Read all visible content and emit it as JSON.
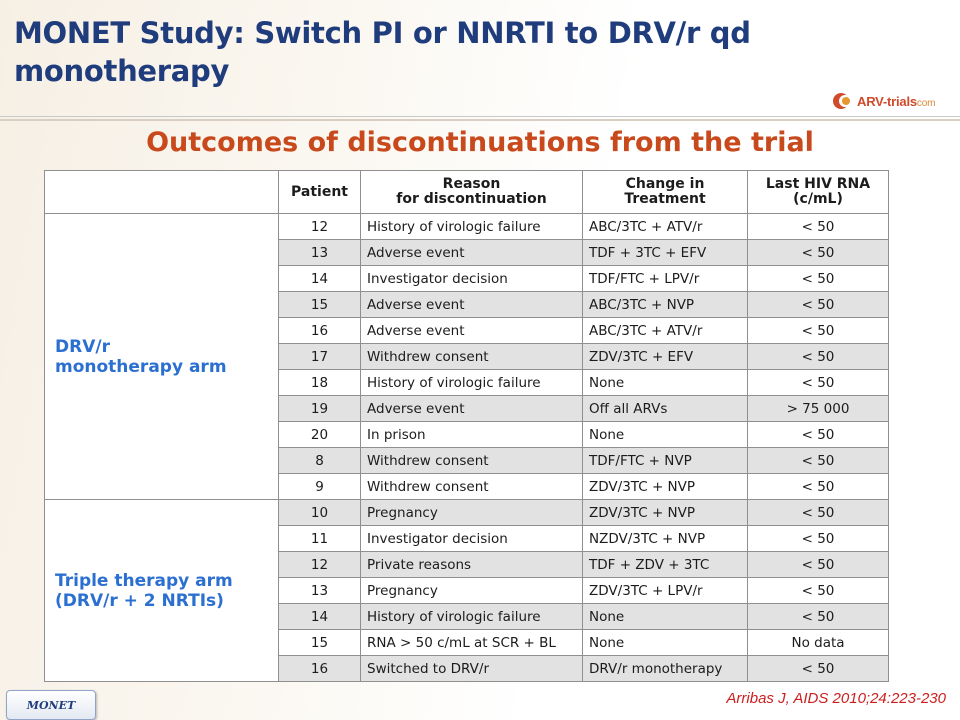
{
  "slide": {
    "title": "MONET Study: Switch PI or NNRTI to DRV/r qd monotherapy",
    "subtitle": "Outcomes of discontinuations from the trial",
    "logo": {
      "text": "ARV-trials",
      "suffix": "com"
    },
    "footer_tab": "MONET",
    "citation": "Arribas J, AIDS 2010;24:223-230"
  },
  "table": {
    "headers": {
      "arm": "",
      "patient": "Patient",
      "reason_line1": "Reason",
      "reason_line2": "for discontinuation",
      "change_line1": "Change in",
      "change_line2": "Treatment",
      "rna_line1": "Last HIV RNA",
      "rna_line2": "(c/mL)"
    },
    "groups": [
      {
        "arm_line1": "DRV/r",
        "arm_line2": "monotherapy arm",
        "rows": [
          {
            "patient": "12",
            "reason": "History of virologic failure",
            "change": "ABC/3TC + ATV/r",
            "rna": "< 50"
          },
          {
            "patient": "13",
            "reason": "Adverse event",
            "change": "TDF + 3TC + EFV",
            "rna": "< 50"
          },
          {
            "patient": "14",
            "reason": "Investigator decision",
            "change": "TDF/FTC + LPV/r",
            "rna": "< 50"
          },
          {
            "patient": "15",
            "reason": "Adverse event",
            "change": "ABC/3TC + NVP",
            "rna": "< 50"
          },
          {
            "patient": "16",
            "reason": "Adverse event",
            "change": "ABC/3TC + ATV/r",
            "rna": "< 50"
          },
          {
            "patient": "17",
            "reason": "Withdrew consent",
            "change": "ZDV/3TC + EFV",
            "rna": "< 50"
          },
          {
            "patient": "18",
            "reason": "History of virologic failure",
            "change": "None",
            "rna": "< 50"
          },
          {
            "patient": "19",
            "reason": "Adverse event",
            "change": "Off all ARVs",
            "rna": "> 75 000"
          },
          {
            "patient": "20",
            "reason": "In prison",
            "change": "None",
            "rna": "< 50"
          },
          {
            "patient": "8",
            "reason": "Withdrew consent",
            "change": "TDF/FTC + NVP",
            "rna": "< 50"
          },
          {
            "patient": "9",
            "reason": "Withdrew consent",
            "change": "ZDV/3TC + NVP",
            "rna": "< 50"
          }
        ]
      },
      {
        "arm_line1": "Triple therapy arm",
        "arm_line2": "(DRV/r + 2 NRTIs)",
        "rows": [
          {
            "patient": "10",
            "reason": "Pregnancy",
            "change": "ZDV/3TC + NVP",
            "rna": "< 50"
          },
          {
            "patient": "11",
            "reason": "Investigator decision",
            "change": "NZDV/3TC + NVP",
            "rna": "< 50"
          },
          {
            "patient": "12",
            "reason": "Private reasons",
            "change": "TDF + ZDV + 3TC",
            "rna": "< 50"
          },
          {
            "patient": "13",
            "reason": "Pregnancy",
            "change": "ZDV/3TC + LPV/r",
            "rna": "< 50"
          },
          {
            "patient": "14",
            "reason": "History of virologic failure",
            "change": "None",
            "rna": "< 50"
          },
          {
            "patient": "15",
            "reason": "RNA > 50 c/mL at SCR + BL",
            "change": "None",
            "rna": "No data"
          },
          {
            "patient": "16",
            "reason": "Switched to DRV/r",
            "change": "DRV/r monotherapy",
            "rna": "< 50"
          }
        ]
      }
    ]
  },
  "colors": {
    "title": "#1f3c7c",
    "subtitle": "#c8491c",
    "arm_label": "#2b6fd1",
    "citation": "#cc1f1f"
  }
}
